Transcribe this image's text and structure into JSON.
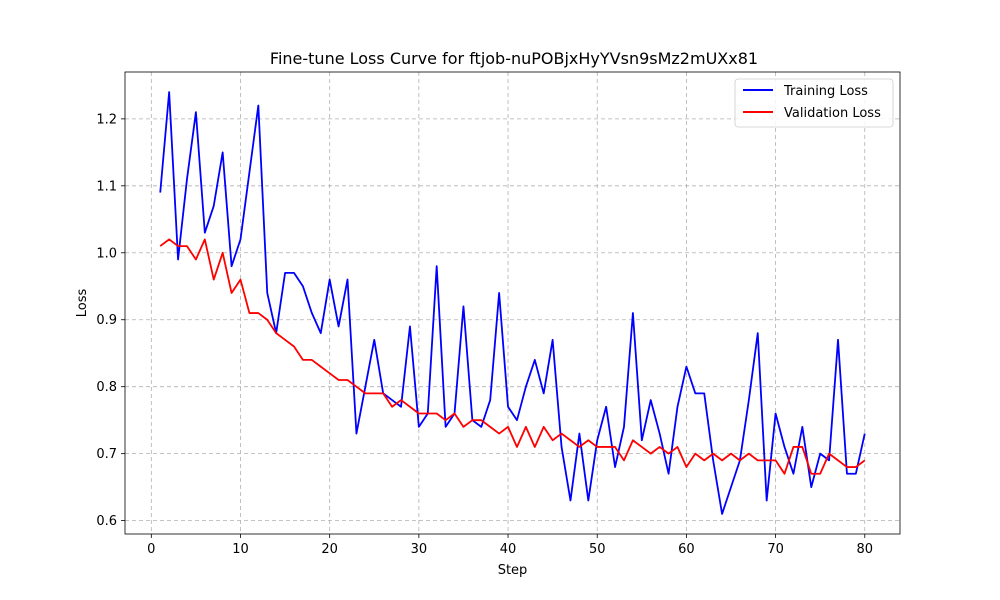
{
  "chart_data": {
    "type": "line",
    "title": "Fine-tune Loss Curve for ftjob-nuPOBjxHyYVsn9sMz2mUXx81",
    "xlabel": "Step",
    "ylabel": "Loss",
    "xlim": [
      -2.95,
      83.95
    ],
    "ylim": [
      0.58,
      1.27
    ],
    "xticks": [
      0,
      10,
      20,
      30,
      40,
      50,
      60,
      70,
      80
    ],
    "yticks": [
      0.6,
      0.7,
      0.8,
      0.9,
      1.0,
      1.1,
      1.2
    ],
    "ytick_labels": [
      "0.6",
      "0.7",
      "0.8",
      "0.9",
      "1.0",
      "1.1",
      "1.2"
    ],
    "grid": true,
    "legend_position": "top-right",
    "x": [
      1,
      2,
      3,
      4,
      5,
      6,
      7,
      8,
      9,
      10,
      11,
      12,
      13,
      14,
      15,
      16,
      17,
      18,
      19,
      20,
      21,
      22,
      23,
      24,
      25,
      26,
      27,
      28,
      29,
      30,
      31,
      32,
      33,
      34,
      35,
      36,
      37,
      38,
      39,
      40,
      41,
      42,
      43,
      44,
      45,
      46,
      47,
      48,
      49,
      50,
      51,
      52,
      53,
      54,
      55,
      56,
      57,
      58,
      59,
      60,
      61,
      62,
      63,
      64,
      65,
      66,
      67,
      68,
      69,
      70,
      71,
      72,
      73,
      74,
      75,
      76,
      77,
      78,
      79,
      80
    ],
    "series": [
      {
        "name": "Training Loss",
        "color": "#0000ff",
        "values": [
          1.09,
          1.24,
          0.99,
          1.11,
          1.21,
          1.03,
          1.07,
          1.15,
          0.98,
          1.02,
          1.12,
          1.22,
          0.94,
          0.88,
          0.97,
          0.97,
          0.95,
          0.91,
          0.88,
          0.96,
          0.89,
          0.96,
          0.73,
          0.8,
          0.87,
          0.79,
          0.78,
          0.77,
          0.89,
          0.74,
          0.76,
          0.98,
          0.74,
          0.76,
          0.92,
          0.75,
          0.74,
          0.78,
          0.94,
          0.77,
          0.75,
          0.8,
          0.84,
          0.79,
          0.87,
          0.71,
          0.63,
          0.73,
          0.63,
          0.72,
          0.77,
          0.68,
          0.74,
          0.91,
          0.72,
          0.78,
          0.73,
          0.67,
          0.77,
          0.83,
          0.79,
          0.79,
          0.69,
          0.61,
          0.65,
          0.69,
          0.78,
          0.88,
          0.63,
          0.76,
          0.71,
          0.67,
          0.74,
          0.65,
          0.7,
          0.69,
          0.87,
          0.67,
          0.67,
          0.73
        ]
      },
      {
        "name": "Validation Loss",
        "color": "#ff0000",
        "values": [
          1.01,
          1.02,
          1.01,
          1.01,
          0.99,
          1.02,
          0.96,
          1.0,
          0.94,
          0.96,
          0.91,
          0.91,
          0.9,
          0.88,
          0.87,
          0.86,
          0.84,
          0.84,
          0.83,
          0.82,
          0.81,
          0.81,
          0.8,
          0.79,
          0.79,
          0.79,
          0.77,
          0.78,
          0.77,
          0.76,
          0.76,
          0.76,
          0.75,
          0.76,
          0.74,
          0.75,
          0.75,
          0.74,
          0.73,
          0.74,
          0.71,
          0.74,
          0.71,
          0.74,
          0.72,
          0.73,
          0.72,
          0.71,
          0.72,
          0.71,
          0.71,
          0.71,
          0.69,
          0.72,
          0.71,
          0.7,
          0.71,
          0.7,
          0.71,
          0.68,
          0.7,
          0.69,
          0.7,
          0.69,
          0.7,
          0.69,
          0.7,
          0.69,
          0.69,
          0.69,
          0.67,
          0.71,
          0.71,
          0.67,
          0.67,
          0.7,
          0.69,
          0.68,
          0.68,
          0.69
        ]
      }
    ]
  }
}
